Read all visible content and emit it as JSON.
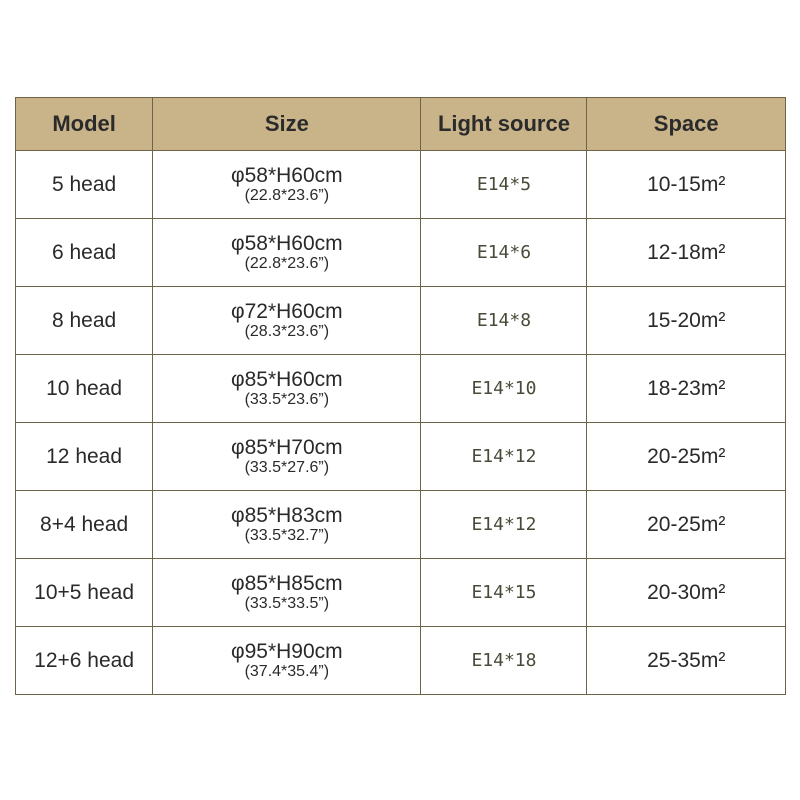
{
  "table": {
    "headers": [
      "Model",
      "Size",
      "Light source",
      "Space"
    ],
    "rows": [
      {
        "model": "5 head",
        "size": "φ58*H60cm",
        "size_in": "(22.8*23.6”)",
        "light": "E14*5",
        "space": "10-15m²"
      },
      {
        "model": "6 head",
        "size": "φ58*H60cm",
        "size_in": "(22.8*23.6”)",
        "light": "E14*6",
        "space": "12-18m²"
      },
      {
        "model": "8 head",
        "size": "φ72*H60cm",
        "size_in": "(28.3*23.6”)",
        "light": "E14*8",
        "space": "15-20m²"
      },
      {
        "model": "10 head",
        "size": "φ85*H60cm",
        "size_in": "(33.5*23.6”)",
        "light": "E14*10",
        "space": "18-23m²"
      },
      {
        "model": "12 head",
        "size": "φ85*H70cm",
        "size_in": "(33.5*27.6”)",
        "light": "E14*12",
        "space": "20-25m²"
      },
      {
        "model": "8+4 head",
        "size": "φ85*H83cm",
        "size_in": "(33.5*32.7”)",
        "light": "E14*12",
        "space": "20-25m²"
      },
      {
        "model": "10+5 head",
        "size": "φ85*H85cm",
        "size_in": "(33.5*33.5”)",
        "light": "E14*15",
        "space": "20-30m²"
      },
      {
        "model": "12+6 head",
        "size": "φ95*H90cm",
        "size_in": "(37.4*35.4”)",
        "light": "E14*18",
        "space": "25-35m²"
      }
    ]
  },
  "colors": {
    "header_bg": "#c9b48a",
    "border": "#6e6248"
  }
}
